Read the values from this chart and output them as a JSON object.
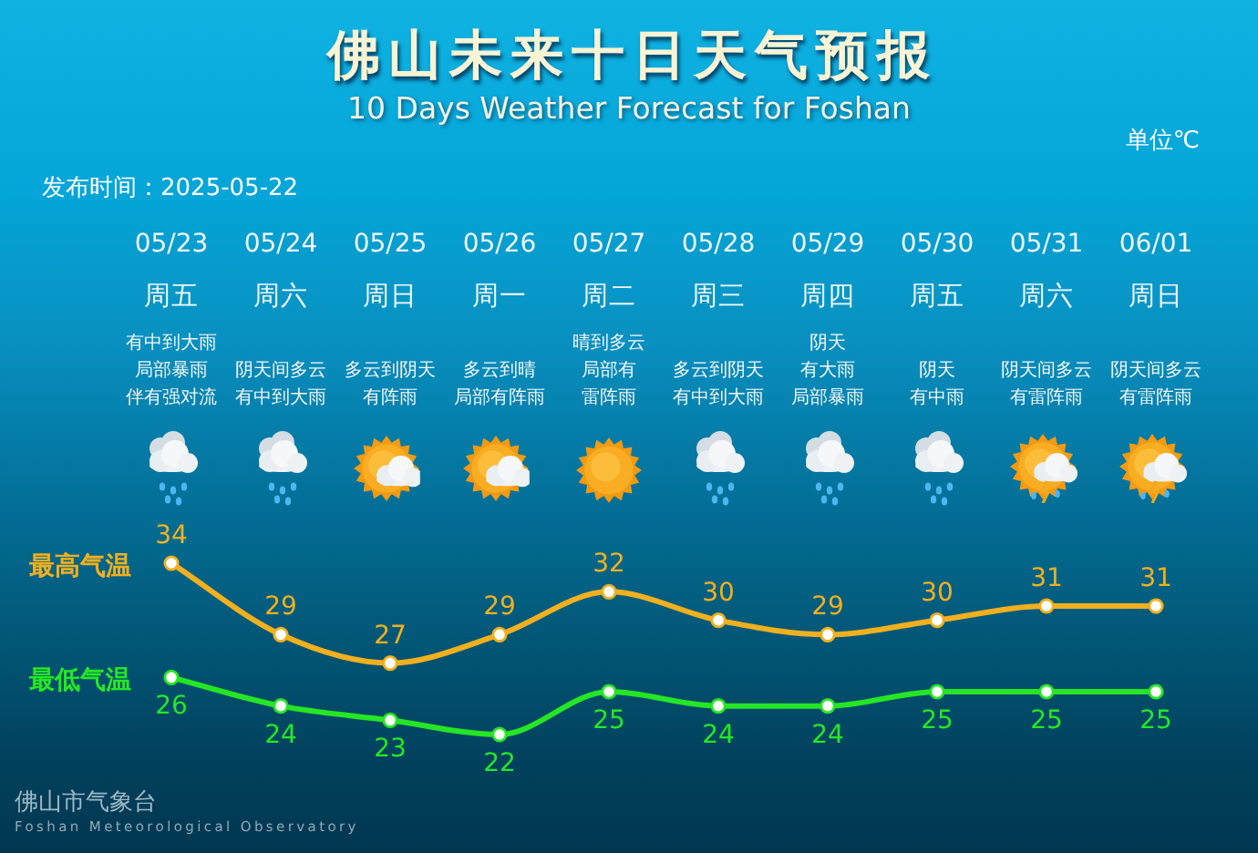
{
  "chart_data": {
    "type": "line",
    "title": "佛山未来十日天气预报",
    "subtitle": "10 Days Weather Forecast for Foshan",
    "categories": [
      "05/23",
      "05/24",
      "05/25",
      "05/26",
      "05/27",
      "05/28",
      "05/29",
      "05/30",
      "05/31",
      "06/01"
    ],
    "series": [
      {
        "name": "最高气温",
        "color": "#f2b01e",
        "values": [
          34,
          29,
          27,
          29,
          32,
          30,
          29,
          30,
          31,
          31
        ]
      },
      {
        "name": "最低气温",
        "color": "#25e625",
        "values": [
          26,
          24,
          23,
          22,
          25,
          24,
          24,
          25,
          25,
          25
        ]
      }
    ],
    "tick_labels": "x",
    "data_labels": true,
    "marker": "circle",
    "annotations": [
      "单位℃",
      "发布时间：2025-05-22",
      "周五",
      "周六",
      "周日",
      "周一",
      "周二",
      "周三",
      "周四",
      "周五",
      "周六",
      "周日",
      "有中到大雨",
      "晴到多云",
      "阴天",
      "局部暴雨",
      "阴天间多云",
      "多云到阴天",
      "多云到晴",
      "局部有",
      "多云到阴天",
      "有大雨",
      "阴天",
      "阴天间多云",
      "阴天间多云",
      "伴有强对流",
      "有中到大雨",
      "有阵雨",
      "局部有阵雨",
      "雷阵雨",
      "有中到大雨",
      "局部暴雨",
      "有中雨",
      "有雷阵雨",
      "有雷阵雨",
      "佛山市气象台",
      "Foshan Meteorological Observatory"
    ]
  }
}
